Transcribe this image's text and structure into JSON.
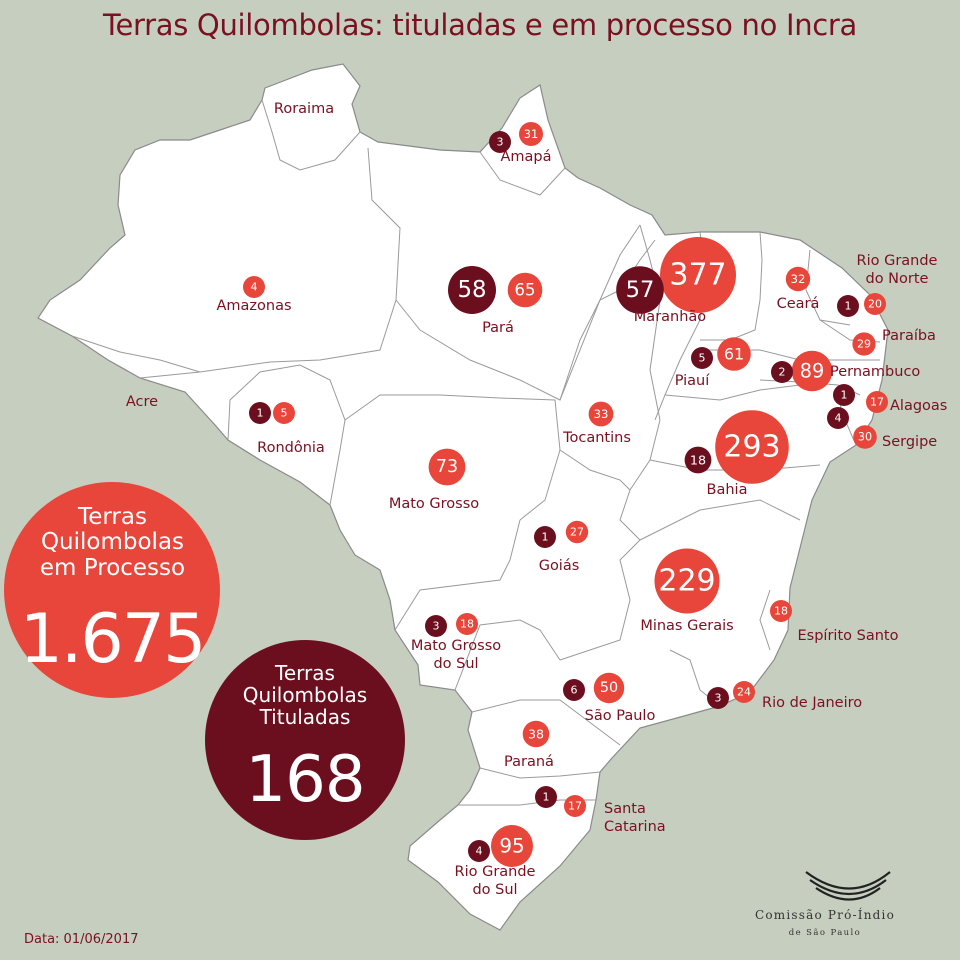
{
  "title": "Terras Quilombolas: tituladas e em processo no Incra",
  "colors": {
    "background": "#c6cfbf",
    "land": "#ffffff",
    "borders": "#8a8a8a",
    "in_process": "#e8463a",
    "titled": "#6b0f1f",
    "text": "#7a1020"
  },
  "totals": {
    "in_process": {
      "label_lines": [
        "Terras",
        "Quilombolas",
        "em Processo"
      ],
      "value": "1.675"
    },
    "titled": {
      "label_lines": [
        "Terras",
        "Quilombolas",
        "Tituladas"
      ],
      "value": "168"
    }
  },
  "states": [
    {
      "name_lines": [
        "Roraima"
      ],
      "in_process": null,
      "titled": null
    },
    {
      "name_lines": [
        "Amapá"
      ],
      "in_process": 31,
      "titled": 3
    },
    {
      "name_lines": [
        "Amazonas"
      ],
      "in_process": 4,
      "titled": null
    },
    {
      "name_lines": [
        "Pará"
      ],
      "in_process": 65,
      "titled": 58
    },
    {
      "name_lines": [
        "Maranhão"
      ],
      "in_process": 377,
      "titled": 57
    },
    {
      "name_lines": [
        "Ceará"
      ],
      "in_process": 32,
      "titled": null
    },
    {
      "name_lines": [
        "Rio Grande",
        "do Norte"
      ],
      "in_process": 20,
      "titled": 1
    },
    {
      "name_lines": [
        "Paraíba"
      ],
      "in_process": 29,
      "titled": null
    },
    {
      "name_lines": [
        "Piauí"
      ],
      "in_process": 61,
      "titled": 5
    },
    {
      "name_lines": [
        "Pernambuco"
      ],
      "in_process": 89,
      "titled": 2
    },
    {
      "name_lines": [
        "Alagoas"
      ],
      "in_process": 17,
      "titled": 1
    },
    {
      "name_lines": [
        "Sergipe"
      ],
      "in_process": 30,
      "titled": 4
    },
    {
      "name_lines": [
        "Acre"
      ],
      "in_process": null,
      "titled": null
    },
    {
      "name_lines": [
        "Rondônia"
      ],
      "in_process": 5,
      "titled": 1
    },
    {
      "name_lines": [
        "Tocantins"
      ],
      "in_process": 33,
      "titled": null
    },
    {
      "name_lines": [
        "Bahia"
      ],
      "in_process": 293,
      "titled": 18
    },
    {
      "name_lines": [
        "Mato Grosso"
      ],
      "in_process": 73,
      "titled": null
    },
    {
      "name_lines": [
        "Goiás"
      ],
      "in_process": 27,
      "titled": 1
    },
    {
      "name_lines": [
        "Minas Gerais"
      ],
      "in_process": 229,
      "titled": null
    },
    {
      "name_lines": [
        "Mato Grosso",
        "do Sul"
      ],
      "in_process": 18,
      "titled": 3
    },
    {
      "name_lines": [
        "Espírito Santo"
      ],
      "in_process": 18,
      "titled": null
    },
    {
      "name_lines": [
        "São Paulo"
      ],
      "in_process": 50,
      "titled": 6
    },
    {
      "name_lines": [
        "Rio de Janeiro"
      ],
      "in_process": 24,
      "titled": 3
    },
    {
      "name_lines": [
        "Paraná"
      ],
      "in_process": 38,
      "titled": null
    },
    {
      "name_lines": [
        "Santa",
        "Catarina"
      ],
      "in_process": 17,
      "titled": 1
    },
    {
      "name_lines": [
        "Rio Grande",
        "do Sul"
      ],
      "in_process": 95,
      "titled": 4
    }
  ],
  "date": "Data: 01/06/2017",
  "logo": {
    "name": "Comissão Pró-Índio",
    "subtitle": "de São Paulo"
  }
}
